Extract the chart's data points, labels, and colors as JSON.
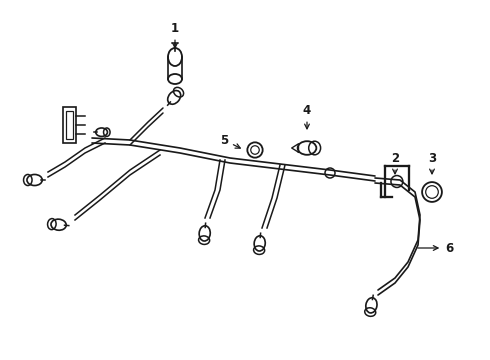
{
  "bg_color": "#ffffff",
  "line_color": "#1a1a1a",
  "figsize": [
    4.9,
    3.6
  ],
  "dpi": 100,
  "sensor_scale": 1.0
}
